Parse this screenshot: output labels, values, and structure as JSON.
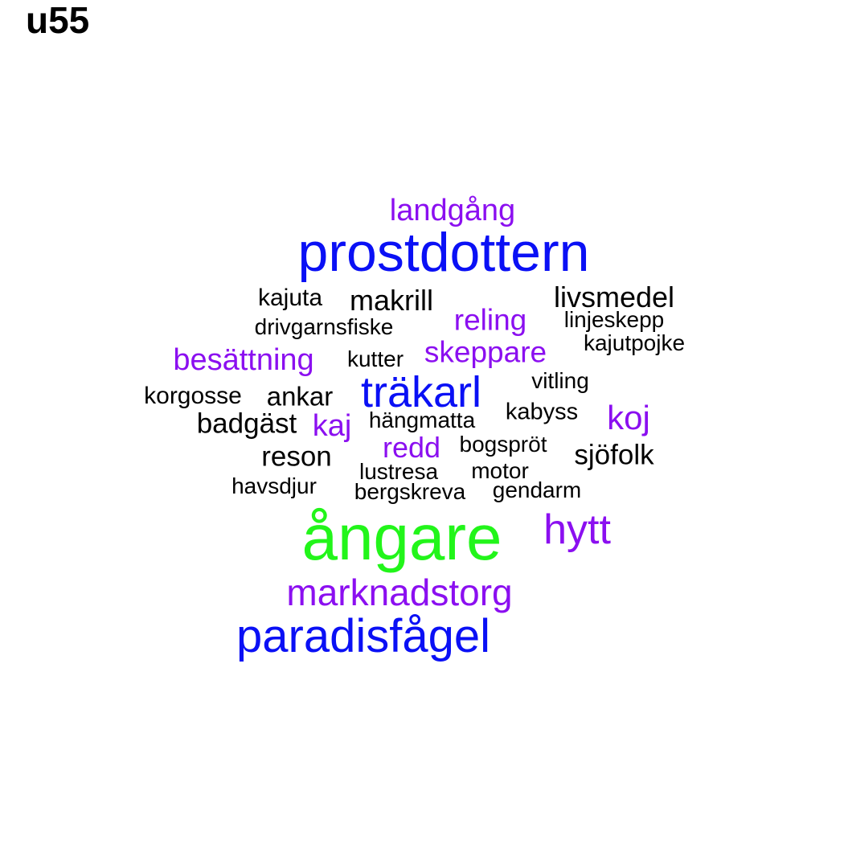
{
  "title": "u55",
  "colors": {
    "black": "#000000",
    "purple": "#8b0ff0",
    "blue": "#0a10f5",
    "green": "#22f51a"
  },
  "words": [
    {
      "text": "ångare",
      "color": "green"
    },
    {
      "text": "prostdottern",
      "color": "blue"
    },
    {
      "text": "paradisfågel",
      "color": "blue"
    },
    {
      "text": "träkarl",
      "color": "blue"
    },
    {
      "text": "hytt",
      "color": "purple"
    },
    {
      "text": "marknadstorg",
      "color": "purple"
    },
    {
      "text": "landgång",
      "color": "purple"
    },
    {
      "text": "besättning",
      "color": "purple"
    },
    {
      "text": "skeppare",
      "color": "purple"
    },
    {
      "text": "reling",
      "color": "purple"
    },
    {
      "text": "koj",
      "color": "purple"
    },
    {
      "text": "kaj",
      "color": "purple"
    },
    {
      "text": "redd",
      "color": "purple"
    },
    {
      "text": "livsmedel",
      "color": "black"
    },
    {
      "text": "makrill",
      "color": "black"
    },
    {
      "text": "badgäst",
      "color": "black"
    },
    {
      "text": "reson",
      "color": "black"
    },
    {
      "text": "sjöfolk",
      "color": "black"
    },
    {
      "text": "ankar",
      "color": "black"
    },
    {
      "text": "kajuta",
      "color": "black"
    },
    {
      "text": "drivgarnsfiske",
      "color": "black"
    },
    {
      "text": "linjeskepp",
      "color": "black"
    },
    {
      "text": "kajutpojke",
      "color": "black"
    },
    {
      "text": "kutter",
      "color": "black"
    },
    {
      "text": "vitling",
      "color": "black"
    },
    {
      "text": "korgosse",
      "color": "black"
    },
    {
      "text": "hängmatta",
      "color": "black"
    },
    {
      "text": "kabyss",
      "color": "black"
    },
    {
      "text": "bogspröt",
      "color": "black"
    },
    {
      "text": "lustresa",
      "color": "black"
    },
    {
      "text": "motor",
      "color": "black"
    },
    {
      "text": "havsdjur",
      "color": "black"
    },
    {
      "text": "bergskreva",
      "color": "black"
    },
    {
      "text": "gendarm",
      "color": "black"
    }
  ]
}
